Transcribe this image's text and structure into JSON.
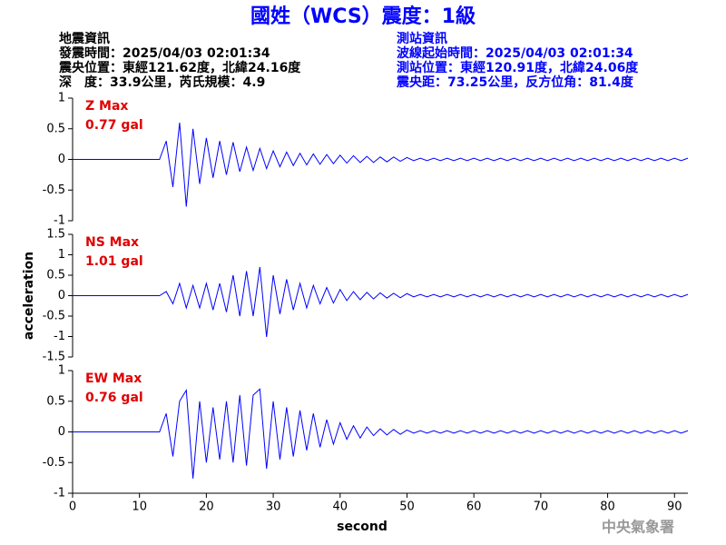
{
  "header": {
    "title": "國姓（WCS）震度：1級",
    "left": [
      "地震資訊",
      "發震時間：2025/04/03 02:01:34",
      "震央位置：東經121.62度，北緯24.16度",
      "深　度：33.9公里，芮氏規模：4.9"
    ],
    "right": [
      "測站資訊",
      "波線起始時間：2025/04/03 02:01:34",
      "測站位置：東經120.91度，北緯24.06度",
      "震央距：73.25公里，反方位角：81.4度"
    ],
    "footer": "中央氣象署"
  },
  "chart_data": [
    {
      "type": "line",
      "label": "Z Max",
      "max_label": "0.77 gal",
      "color": "#0000ff",
      "label_color": "#e00000",
      "x": [
        0,
        13,
        14,
        15,
        16,
        17,
        18,
        19,
        20,
        21,
        22,
        23,
        24,
        25,
        26,
        27,
        28,
        29,
        30,
        31,
        32,
        33,
        34,
        35,
        36,
        37,
        38,
        39,
        40,
        41,
        42,
        43,
        44,
        45,
        46,
        47,
        48,
        49,
        50,
        51,
        52,
        53,
        54,
        55,
        56,
        57,
        58,
        59,
        60,
        61,
        62,
        63,
        64,
        65,
        66,
        67,
        68,
        69,
        70,
        71,
        72,
        73,
        74,
        75,
        76,
        77,
        78,
        79,
        80,
        81,
        82,
        83,
        84,
        85,
        86,
        87,
        88,
        89,
        90,
        91,
        92
      ],
      "values": [
        0,
        0,
        0.3,
        -0.45,
        0.6,
        -0.77,
        0.5,
        -0.4,
        0.35,
        -0.3,
        0.3,
        -0.25,
        0.28,
        -0.2,
        0.2,
        -0.18,
        0.18,
        -0.15,
        0.14,
        -0.12,
        0.12,
        -0.1,
        0.1,
        -0.09,
        0.09,
        -0.08,
        0.08,
        -0.07,
        0.07,
        -0.06,
        0.06,
        -0.05,
        0.05,
        -0.05,
        0.04,
        -0.04,
        0.04,
        -0.03,
        0.03,
        -0.02,
        0.02,
        -0.02,
        0.02,
        -0.02,
        0.02,
        -0.02,
        0.02,
        -0.02,
        0.02,
        -0.02,
        0.02,
        -0.02,
        0.02,
        -0.02,
        0.02,
        -0.02,
        0.02,
        -0.02,
        0.02,
        -0.02,
        0.02,
        -0.02,
        0.02,
        -0.02,
        0.02,
        -0.02,
        0.02,
        -0.02,
        0.02,
        -0.02,
        0.02,
        -0.02,
        0.02,
        -0.02,
        0.02,
        -0.02,
        0.02,
        -0.02,
        0.02,
        -0.02,
        0.02
      ],
      "xlim": [
        0,
        92
      ],
      "ylim": [
        -1,
        1
      ],
      "yticks": [
        -1,
        -0.5,
        0,
        0.5,
        1
      ]
    },
    {
      "type": "line",
      "label": "NS Max",
      "max_label": "1.01 gal",
      "color": "#0000ff",
      "label_color": "#e00000",
      "ylabel": "acceleration",
      "x": [
        0,
        13,
        14,
        15,
        16,
        17,
        18,
        19,
        20,
        21,
        22,
        23,
        24,
        25,
        26,
        27,
        28,
        29,
        30,
        31,
        32,
        33,
        34,
        35,
        36,
        37,
        38,
        39,
        40,
        41,
        42,
        43,
        44,
        45,
        46,
        47,
        48,
        49,
        50,
        51,
        52,
        53,
        54,
        55,
        56,
        57,
        58,
        59,
        60,
        61,
        62,
        63,
        64,
        65,
        66,
        67,
        68,
        69,
        70,
        71,
        72,
        73,
        74,
        75,
        76,
        77,
        78,
        79,
        80,
        81,
        82,
        83,
        84,
        85,
        86,
        87,
        88,
        89,
        90,
        91,
        92
      ],
      "values": [
        0,
        0,
        0.1,
        -0.2,
        0.3,
        -0.3,
        0.25,
        -0.3,
        0.3,
        -0.35,
        0.3,
        -0.4,
        0.5,
        -0.5,
        0.6,
        -0.5,
        0.7,
        -1.01,
        0.5,
        -0.45,
        0.4,
        -0.35,
        0.3,
        -0.3,
        0.25,
        -0.2,
        0.2,
        -0.18,
        0.15,
        -0.12,
        0.1,
        -0.1,
        0.08,
        -0.08,
        0.07,
        -0.06,
        0.06,
        -0.05,
        0.05,
        -0.03,
        0.03,
        -0.03,
        0.03,
        -0.03,
        0.03,
        -0.03,
        0.03,
        -0.03,
        0.03,
        -0.03,
        0.03,
        -0.03,
        0.03,
        -0.03,
        0.03,
        -0.03,
        0.03,
        -0.03,
        0.03,
        -0.03,
        0.03,
        -0.03,
        0.03,
        -0.03,
        0.03,
        -0.03,
        0.03,
        -0.03,
        0.03,
        -0.03,
        0.03,
        -0.03,
        0.03,
        -0.03,
        0.03,
        -0.03,
        0.03,
        -0.03,
        0.03,
        -0.03,
        0.03
      ],
      "xlim": [
        0,
        92
      ],
      "ylim": [
        -1.5,
        1.5
      ],
      "yticks": [
        -1.5,
        -1,
        -0.5,
        0,
        0.5,
        1,
        1.5
      ]
    },
    {
      "type": "line",
      "label": "EW Max",
      "max_label": "0.76 gal",
      "color": "#0000ff",
      "label_color": "#e00000",
      "xlabel": "second",
      "x": [
        0,
        13,
        14,
        15,
        16,
        17,
        18,
        19,
        20,
        21,
        22,
        23,
        24,
        25,
        26,
        27,
        28,
        29,
        30,
        31,
        32,
        33,
        34,
        35,
        36,
        37,
        38,
        39,
        40,
        41,
        42,
        43,
        44,
        45,
        46,
        47,
        48,
        49,
        50,
        51,
        52,
        53,
        54,
        55,
        56,
        57,
        58,
        59,
        60,
        61,
        62,
        63,
        64,
        65,
        66,
        67,
        68,
        69,
        70,
        71,
        72,
        73,
        74,
        75,
        76,
        77,
        78,
        79,
        80,
        81,
        82,
        83,
        84,
        85,
        86,
        87,
        88,
        89,
        90,
        91,
        92
      ],
      "values": [
        0,
        0,
        0.3,
        -0.4,
        0.5,
        0.68,
        -0.76,
        0.5,
        -0.5,
        0.4,
        -0.45,
        0.5,
        -0.5,
        0.6,
        -0.55,
        0.6,
        0.7,
        -0.6,
        0.5,
        -0.45,
        0.4,
        -0.4,
        0.35,
        -0.3,
        0.3,
        -0.25,
        0.2,
        -0.2,
        0.15,
        -0.12,
        0.1,
        -0.1,
        0.08,
        -0.06,
        0.05,
        -0.05,
        0.04,
        -0.04,
        0.03,
        -0.02,
        0.02,
        -0.02,
        0.02,
        -0.02,
        0.02,
        -0.02,
        0.02,
        -0.02,
        0.02,
        -0.02,
        0.02,
        -0.02,
        0.02,
        -0.02,
        0.02,
        -0.02,
        0.02,
        -0.02,
        0.02,
        -0.02,
        0.02,
        -0.02,
        0.02,
        -0.02,
        0.02,
        -0.02,
        0.02,
        -0.02,
        0.02,
        -0.02,
        0.02,
        -0.02,
        0.02,
        -0.02,
        0.02,
        -0.02,
        0.02,
        -0.02,
        0.02,
        -0.02,
        0.02
      ],
      "xlim": [
        0,
        92
      ],
      "ylim": [
        -1,
        1
      ],
      "yticks": [
        -1,
        -0.5,
        0,
        0.5,
        1
      ],
      "xticks": [
        0,
        10,
        20,
        30,
        40,
        50,
        60,
        70,
        80,
        90
      ]
    }
  ]
}
